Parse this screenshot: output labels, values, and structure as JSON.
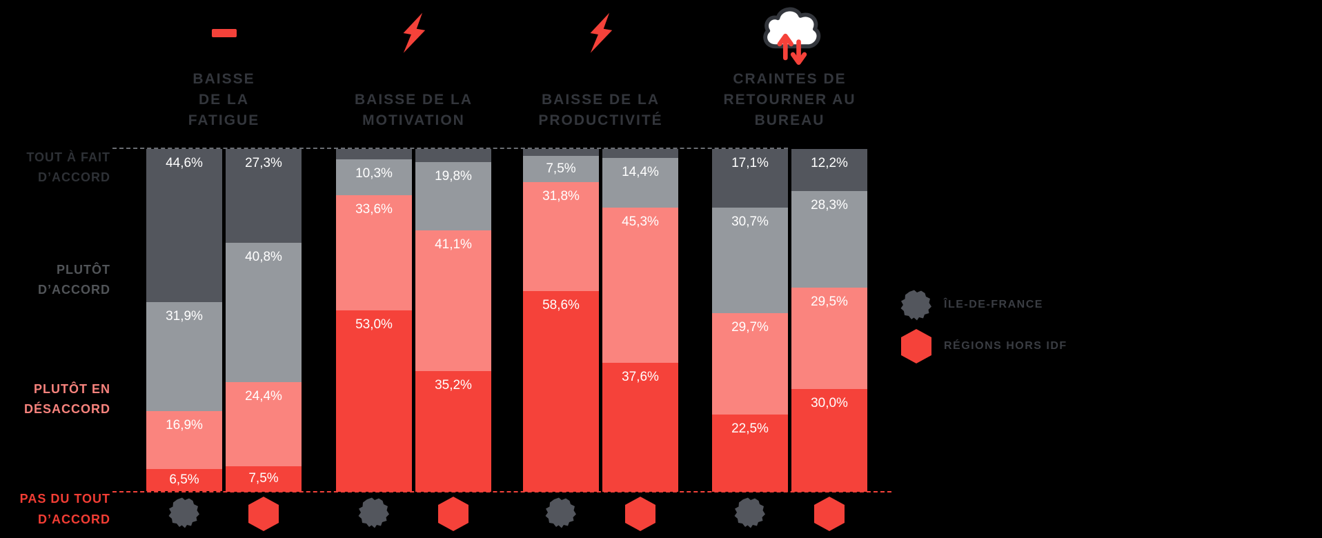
{
  "canvas": {
    "background": "#000000"
  },
  "chart_data": {
    "type": "bar",
    "stacked": true,
    "orientation": "vertical",
    "unit": "%",
    "value_range": [
      0,
      100
    ],
    "grid": "off",
    "legend_position": "right",
    "answer_levels": [
      {
        "id": "tout-a-fait-daccord",
        "label": "TOUT À FAIT D’ACCORD",
        "label_lines": [
          "TOUT À FAIT",
          "D’ACCORD"
        ],
        "color": "#53565D",
        "text_color": "#2E3136"
      },
      {
        "id": "plutot-daccord",
        "label": "PLUTÔT D’ACCORD",
        "label_lines": [
          "PLUTÔT",
          "D’ACCORD"
        ],
        "color": "#95999E",
        "text_color": "#515458"
      },
      {
        "id": "plutot-en-desaccord",
        "label": "PLUTÔT EN DÉSACCORD",
        "label_lines": [
          "PLUTÔT EN",
          "DÉSACCORD"
        ],
        "color": "#FA847E",
        "text_color": "#F8837D"
      },
      {
        "id": "pas-du-tout-daccord",
        "label": "PAS DU TOUT D’ACCORD",
        "label_lines": [
          "PAS DU TOUT",
          "D’ACCORD"
        ],
        "color": "#F5423A",
        "text_color": "#F23D34"
      }
    ],
    "series": [
      "ÎLE-DE-FRANCE",
      "RÉGIONS HORS IDF"
    ],
    "groups": [
      {
        "id": "baisse-fatigue",
        "title": "BAISSE DE LA FATIGUE",
        "title_lines": [
          "BAISSE",
          "DE LA",
          "FATIGUE"
        ],
        "icon": "minus-icon",
        "bars": [
          {
            "series": "ÎLE-DE-FRANCE",
            "marker": "idf-map-icon",
            "values": [
              44.6,
              31.9,
              16.9,
              6.5
            ],
            "labels": [
              "44,6%",
              "31,9%",
              "16,9%",
              "6,5%"
            ]
          },
          {
            "series": "RÉGIONS HORS IDF",
            "marker": "hexagon-icon",
            "values": [
              27.3,
              40.8,
              24.4,
              7.5
            ],
            "labels": [
              "27,3%",
              "40,8%",
              "24,4%",
              "7,5%"
            ]
          }
        ]
      },
      {
        "id": "baisse-motivation",
        "title": "BAISSE DE LA MOTIVATION",
        "title_lines": [
          "BAISSE DE LA",
          "MOTIVATION"
        ],
        "icon": "lightning-icon",
        "bars": [
          {
            "series": "ÎLE-DE-FRANCE",
            "marker": "idf-map-icon",
            "values": [
              3.1,
              10.3,
              33.6,
              53.0
            ],
            "labels": [
              null,
              "10,3%",
              "33,6%",
              "53,0%"
            ]
          },
          {
            "series": "RÉGIONS HORS IDF",
            "marker": "hexagon-icon",
            "values": [
              3.9,
              19.8,
              41.1,
              35.2
            ],
            "labels": [
              null,
              "19,8%",
              "41,1%",
              "35,2%"
            ]
          }
        ]
      },
      {
        "id": "baisse-productivite",
        "title": "BAISSE DE LA PRODUCTIVITÉ",
        "title_lines": [
          "BAISSE DE LA",
          "PRODUCTIVITÉ"
        ],
        "icon": "lightning-icon",
        "bars": [
          {
            "series": "ÎLE-DE-FRANCE",
            "marker": "idf-map-icon",
            "values": [
              2.1,
              7.5,
              31.8,
              58.6
            ],
            "labels": [
              null,
              "7,5%",
              "31,8%",
              "58,6%"
            ]
          },
          {
            "series": "RÉGIONS HORS IDF",
            "marker": "hexagon-icon",
            "values": [
              2.7,
              14.4,
              45.3,
              37.6
            ],
            "labels": [
              null,
              "14,4%",
              "45,3%",
              "37,6%"
            ]
          }
        ]
      },
      {
        "id": "craintes-retour-bureau",
        "title": "CRAINTES DE RETOURNER AU BUREAU",
        "title_lines": [
          "CRAINTES DE",
          "RETOURNER AU",
          "BUREAU"
        ],
        "icon": "cloud-arrows-icon",
        "bars": [
          {
            "series": "ÎLE-DE-FRANCE",
            "marker": "idf-map-icon",
            "values": [
              17.1,
              30.7,
              29.7,
              22.5
            ],
            "labels": [
              "17,1%",
              "30,7%",
              "29,7%",
              "22,5%"
            ]
          },
          {
            "series": "RÉGIONS HORS IDF",
            "marker": "hexagon-icon",
            "values": [
              12.2,
              28.3,
              29.5,
              30.0
            ],
            "labels": [
              "12,2%",
              "28,3%",
              "29,5%",
              "30,0%"
            ]
          }
        ]
      }
    ],
    "notes": "Segments per bar top to bottom: TOUT À FAIT D’ACCORD, PLUTÔT D’ACCORD, PLUTÔT EN DÉSACCORD, PAS DU TOUT D’ACCORD. Small dark top segments of groups 2 and 3 carry no printed value."
  },
  "legend": {
    "items": [
      {
        "label": "ÎLE-DE-FRANCE",
        "icon": "idf-map-icon",
        "color": "#53565D"
      },
      {
        "label": "RÉGIONS HORS IDF",
        "icon": "hexagon-icon",
        "color": "#F5423A"
      }
    ]
  },
  "colors": {
    "background": "#000000",
    "dark_segment": "#53565D",
    "gray_segment": "#95999E",
    "pink_segment": "#FA847E",
    "red_segment": "#F5423A",
    "value_text": "#FFFFFF",
    "title_text": "#33363C",
    "legend_text": "#3A3D43",
    "dash_top": "#6A6D72",
    "dash_bottom": "#F5423A",
    "cloud_fill": "#FFFFFF",
    "cloud_stroke": "#33363C",
    "arrow_red": "#F5423A"
  }
}
